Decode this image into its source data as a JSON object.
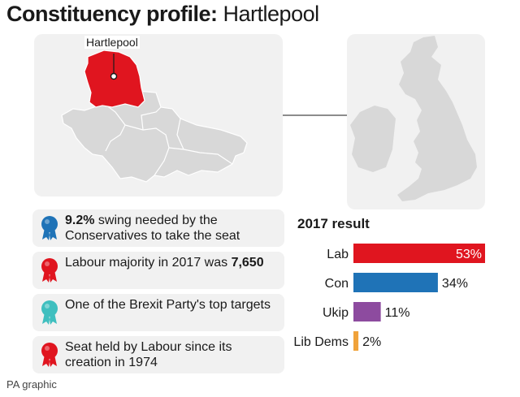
{
  "header": {
    "title_bold": "Constituency profile:",
    "title_light": "Hartlepool"
  },
  "map": {
    "constituency_label": "Hartlepool",
    "highlight_color": "#e0151f",
    "region_color": "#d8d8d8"
  },
  "facts": [
    {
      "icon": "rosette-icon",
      "color": "#1f73b7",
      "parts": [
        [
          "9.2%",
          true
        ],
        [
          " swing needed by the Conservatives to take the seat",
          false
        ]
      ]
    },
    {
      "icon": "rosette-icon",
      "color": "#e0151f",
      "parts": [
        [
          "Labour majority in 2017 was ",
          false
        ],
        [
          "7,650",
          true
        ]
      ]
    },
    {
      "icon": "rosette-icon",
      "color": "#3fbfbf",
      "parts": [
        [
          "One of the Brexit Party's top targets",
          false
        ]
      ]
    },
    {
      "icon": "rosette-icon",
      "color": "#e0151f",
      "parts": [
        [
          "Seat held by Labour since its creation in 1974",
          false
        ]
      ]
    }
  ],
  "source": "PA graphic",
  "chart_data": {
    "type": "bar",
    "orientation": "horizontal",
    "title": "2017 result",
    "categories": [
      "Lab",
      "Con",
      "Ukip",
      "Lib Dems"
    ],
    "values": [
      53,
      34,
      11,
      2
    ],
    "value_labels": [
      "53%",
      "34%",
      "11%",
      "2%"
    ],
    "colors": [
      "#e0151f",
      "#1f73b7",
      "#8d4b9f",
      "#f0a23a"
    ],
    "label_inside": [
      true,
      false,
      false,
      false
    ],
    "xlim": [
      0,
      53
    ]
  }
}
